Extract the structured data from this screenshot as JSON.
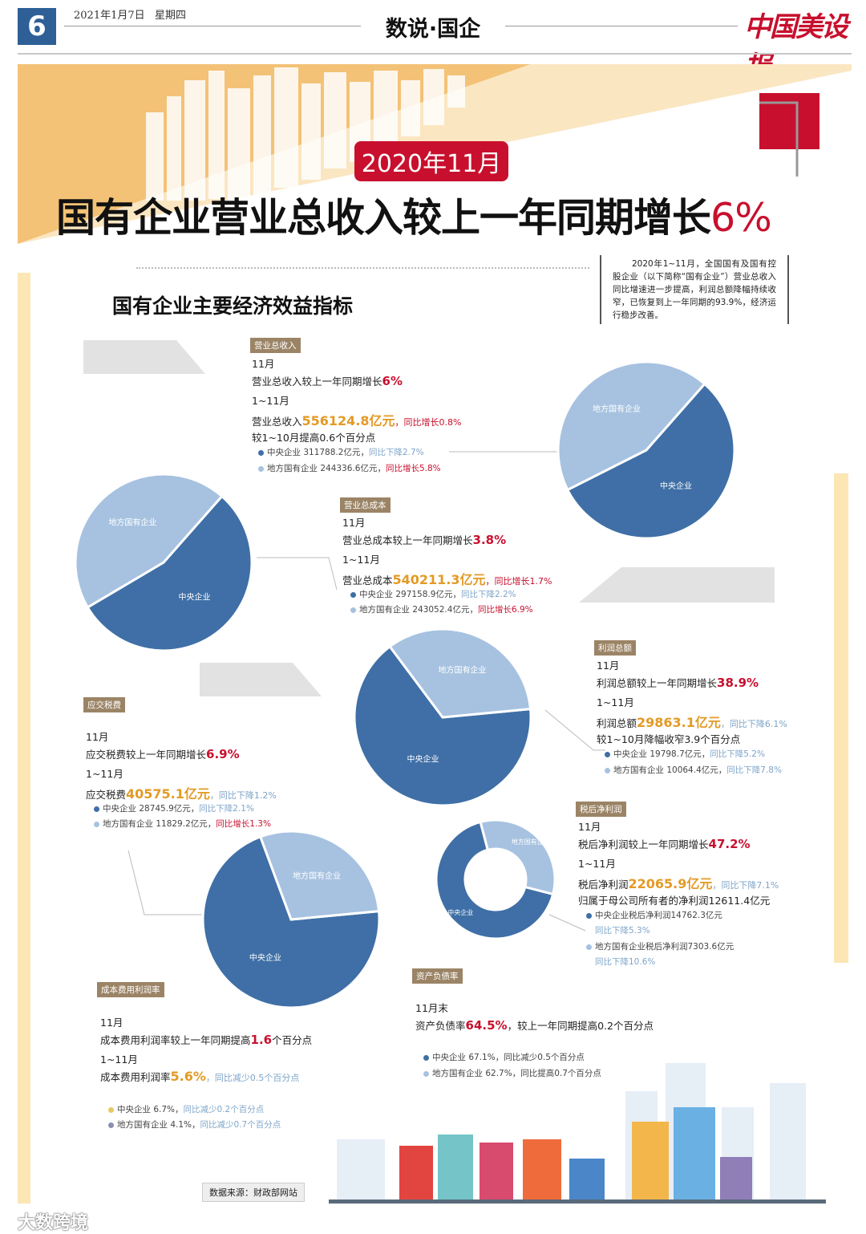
{
  "header": {
    "page_number": "6",
    "date": "2021年1月7日   星期四",
    "section": "数说·国企",
    "logo": "中国美设报"
  },
  "banner": {
    "badge": "2020年11月",
    "headline": "国有企业营业总收入较上一年同期增长",
    "headline_highlight": "6%"
  },
  "intro": "2020年1~11月，全国国有及国有控股企业（以下简称“国有企业”）营业总收入同比增速进一步提高，利润总额降幅持续收窄，已恢复到上一年同期的93.9%，经济运行稳步改善。",
  "main_title": "国有企业主要经济效益指标",
  "colors": {
    "central": "#3f6fa6",
    "local": "#a7c2e0",
    "accent_red": "#c8102e",
    "accent_orange": "#e39a25"
  },
  "sections": {
    "revenue": {
      "tag": "营业总收入",
      "m11": "11月",
      "m11_text": "营业总收入较上一年同期增长",
      "m11_value": "6%",
      "ytd": "1~11月",
      "ytd_text": "营业总收入",
      "ytd_value": "556124.8亿元",
      "ytd_change": "，同比增长0.8%",
      "extra": "较1~10月提高0.6个百分点",
      "central": "中央企业 311788.2亿元，",
      "central_change": "同比下降2.7%",
      "local": "地方国有企业 244336.6亿元，",
      "local_change": "同比增长5.8%"
    },
    "cost": {
      "tag": "营业总成本",
      "m11": "11月",
      "m11_text": "营业总成本较上一年同期增长",
      "m11_value": "3.8%",
      "ytd": "1~11月",
      "ytd_text": "营业总成本",
      "ytd_value": "540211.3亿元",
      "ytd_change": "，同比增长1.7%",
      "central": "中央企业 297158.9亿元，",
      "central_change": "同比下降2.2%",
      "local": "地方国有企业 243052.4亿元，",
      "local_change": "同比增长6.9%"
    },
    "profit": {
      "tag": "利润总额",
      "m11": "11月",
      "m11_text": "利润总额较上一年同期增长",
      "m11_value": "38.9%",
      "ytd": "1~11月",
      "ytd_text": "利润总额",
      "ytd_value": "29863.1亿元",
      "ytd_change": "，同比下降6.1%",
      "extra": "较1~10月降幅收窄3.9个百分点",
      "central": "中央企业 19798.7亿元，",
      "central_change": "同比下降5.2%",
      "local": "地方国有企业 10064.4亿元，",
      "local_change": "同比下降7.8%"
    },
    "tax": {
      "tag": "应交税费",
      "m11": "11月",
      "m11_text": "应交税费较上一年同期增长",
      "m11_value": "6.9%",
      "ytd": "1~11月",
      "ytd_text": "应交税费",
      "ytd_value": "40575.1亿元",
      "ytd_change": "，同比下降1.2%",
      "central": "中央企业 28745.9亿元，",
      "central_change": "同比下降2.1%",
      "local": "地方国有企业 11829.2亿元，",
      "local_change": "同比增长1.3%"
    },
    "netprofit": {
      "tag": "税后净利润",
      "m11": "11月",
      "m11_text": "税后净利润较上一年同期增长",
      "m11_value": "47.2%",
      "ytd": "1~11月",
      "ytd_text": "税后净利润",
      "ytd_value": "22065.9亿元",
      "ytd_change": "，同比下降7.1%",
      "extra": "归属于母公司所有者的净利润12611.4亿元",
      "central": "中央企业税后净利润14762.3亿元",
      "central_change": "同比下降5.3%",
      "local": "地方国有企业税后净利润7303.6亿元",
      "local_change": "同比下降10.6%"
    },
    "costmargin": {
      "tag": "成本费用利润率",
      "m11": "11月",
      "m11_text": "成本费用利润率较上一年同期提高",
      "m11_value": "1.6",
      "m11_unit": "个百分点",
      "ytd": "1~11月",
      "ytd_text": "成本费用利润率",
      "ytd_value": "5.6%",
      "ytd_change": "，同比减少0.5个百分点",
      "central": "中央企业 6.7%，",
      "central_change": "同比减少0.2个百分点",
      "local": "地方国有企业 4.1%，",
      "local_change": "同比减少0.7个百分点"
    },
    "debt": {
      "tag": "资产负债率",
      "m": "11月末",
      "text": "资产负债率",
      "value": "64.5%",
      "change": "，较上一年同期提高0.2个百分点",
      "central": "中央企业 67.1%，同比减少0.5个百分点",
      "local": "地方国有企业 62.7%，同比提高0.7个百分点"
    }
  },
  "chart_data": [
    {
      "type": "pie",
      "id": "revenue",
      "categories": [
        "中央企业",
        "地方国有企业"
      ],
      "values": [
        311788.2,
        244336.6
      ]
    },
    {
      "type": "pie",
      "id": "cost",
      "categories": [
        "中央企业",
        "地方国有企业"
      ],
      "values": [
        297158.9,
        243052.4
      ]
    },
    {
      "type": "pie",
      "id": "profit",
      "categories": [
        "中央企业",
        "地方国有企业"
      ],
      "values": [
        19798.7,
        10064.4
      ]
    },
    {
      "type": "pie",
      "id": "tax",
      "categories": [
        "中央企业",
        "地方国有企业"
      ],
      "values": [
        28745.9,
        11829.2
      ]
    },
    {
      "type": "pie",
      "id": "netprofit",
      "donut": true,
      "categories": [
        "中央企业",
        "地方国有企业"
      ],
      "values": [
        14762.3,
        7303.6
      ]
    }
  ],
  "source": "数据来源：财政部网站",
  "watermark": "大数跨境"
}
